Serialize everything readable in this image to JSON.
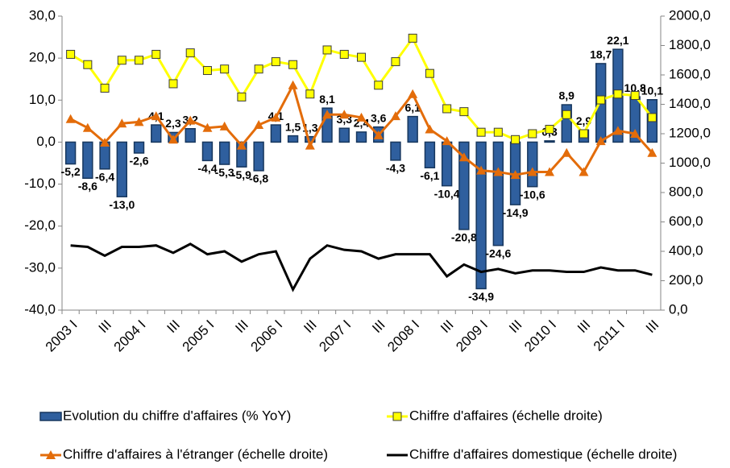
{
  "chart_data": {
    "type": "bar",
    "categories": [
      "2003 I",
      null,
      "III",
      null,
      "2004 I",
      null,
      "III",
      null,
      "2005 I",
      null,
      "III",
      null,
      "2006 I",
      null,
      "III",
      null,
      "2007 I",
      null,
      "III",
      null,
      "2008 I",
      null,
      "III",
      null,
      "2009 I",
      null,
      "III",
      null,
      "2010 I",
      null,
      "III",
      null,
      "2011 I",
      null,
      "III"
    ],
    "ylim": [
      -40,
      30
    ],
    "yticks": [
      {
        "value": -40,
        "label": "-40,0"
      },
      {
        "value": -30,
        "label": "-30,0"
      },
      {
        "value": -20,
        "label": "-20,0"
      },
      {
        "value": -10,
        "label": "-10,0"
      },
      {
        "value": 0,
        "label": "0,0"
      },
      {
        "value": 10,
        "label": "10,0"
      },
      {
        "value": 20,
        "label": "20,0"
      },
      {
        "value": 30,
        "label": "30,0"
      }
    ],
    "y2lim": [
      0,
      2000
    ],
    "y2ticks": [
      {
        "value": 0,
        "label": "0,0"
      },
      {
        "value": 200,
        "label": "200,0"
      },
      {
        "value": 400,
        "label": "400,0"
      },
      {
        "value": 600,
        "label": "600,0"
      },
      {
        "value": 800,
        "label": "800,0"
      },
      {
        "value": 1000,
        "label": "1000,0"
      },
      {
        "value": 1200,
        "label": "1200,0"
      },
      {
        "value": 1400,
        "label": "1400,0"
      },
      {
        "value": 1600,
        "label": "1600,0"
      },
      {
        "value": 1800,
        "label": "1800,0"
      },
      {
        "value": 2000,
        "label": "2000,0"
      }
    ],
    "grid": false,
    "legend": "bottom",
    "series": [
      {
        "name": "Evolution du chiffre d'affaires (% YoY)",
        "type": "bar",
        "color": "#2f5f9e",
        "values": [
          -5.2,
          -8.6,
          -6.4,
          -13.0,
          -2.6,
          4.1,
          2.3,
          3.2,
          -4.4,
          -5.3,
          -5.9,
          -6.8,
          4.1,
          1.5,
          1.3,
          8.1,
          3.3,
          2.4,
          3.6,
          -4.3,
          6.1,
          -6.1,
          -10.4,
          -20.8,
          -34.9,
          -24.6,
          -14.9,
          -10.6,
          0.3,
          8.9,
          2.9,
          18.7,
          22.1,
          10.8,
          10.1
        ],
        "value_labels": [
          "-5,2",
          "-8,6",
          "-6,4",
          "-13,0",
          "-2,6",
          "4,1",
          "2,3",
          "3,2",
          "-4,4",
          "-5,3",
          "-5,9",
          "-6,8",
          "4,1",
          "1,5",
          "1,3",
          "8,1",
          "3,3",
          "2,4",
          "3,6",
          "-4,3",
          "6,1",
          "-6,1",
          "-10,4",
          "-20,8",
          "-34,9",
          "-24,6",
          "-14,9",
          "-10,6",
          "0,3",
          "8,9",
          "2,9",
          "18,7",
          "22,1",
          "10,8",
          "10,1"
        ]
      },
      {
        "name": "Chiffre d'affaires (échelle droite)",
        "type": "line",
        "axis": "y2",
        "color": "#ffff00",
        "marker": "square",
        "values": [
          1740,
          1670,
          1510,
          1700,
          1700,
          1740,
          1540,
          1750,
          1630,
          1640,
          1450,
          1640,
          1690,
          1670,
          1470,
          1770,
          1740,
          1720,
          1530,
          1690,
          1850,
          1610,
          1370,
          1350,
          1210,
          1210,
          1160,
          1200,
          1230,
          1330,
          1200,
          1430,
          1470,
          1460,
          1310
        ]
      },
      {
        "name": "Chiffre d'affaires à l'étranger (échelle droite)",
        "type": "line",
        "axis": "y2",
        "color": "#e36c0a",
        "marker": "triangle",
        "values": [
          1300,
          1240,
          1140,
          1270,
          1280,
          1320,
          1160,
          1290,
          1240,
          1250,
          1120,
          1260,
          1310,
          1530,
          1120,
          1330,
          1330,
          1310,
          1190,
          1320,
          1470,
          1230,
          1150,
          1040,
          950,
          940,
          920,
          940,
          940,
          1070,
          940,
          1150,
          1220,
          1200,
          1070
        ]
      },
      {
        "name": "Chiffre d'affaires domestique (échelle droite)",
        "type": "line",
        "axis": "y2",
        "color": "#000000",
        "values": [
          440,
          430,
          370,
          430,
          430,
          440,
          390,
          450,
          380,
          400,
          330,
          380,
          400,
          140,
          350,
          440,
          410,
          400,
          350,
          380,
          380,
          380,
          230,
          310,
          260,
          280,
          250,
          270,
          270,
          260,
          260,
          290,
          270,
          270,
          240
        ]
      }
    ]
  }
}
